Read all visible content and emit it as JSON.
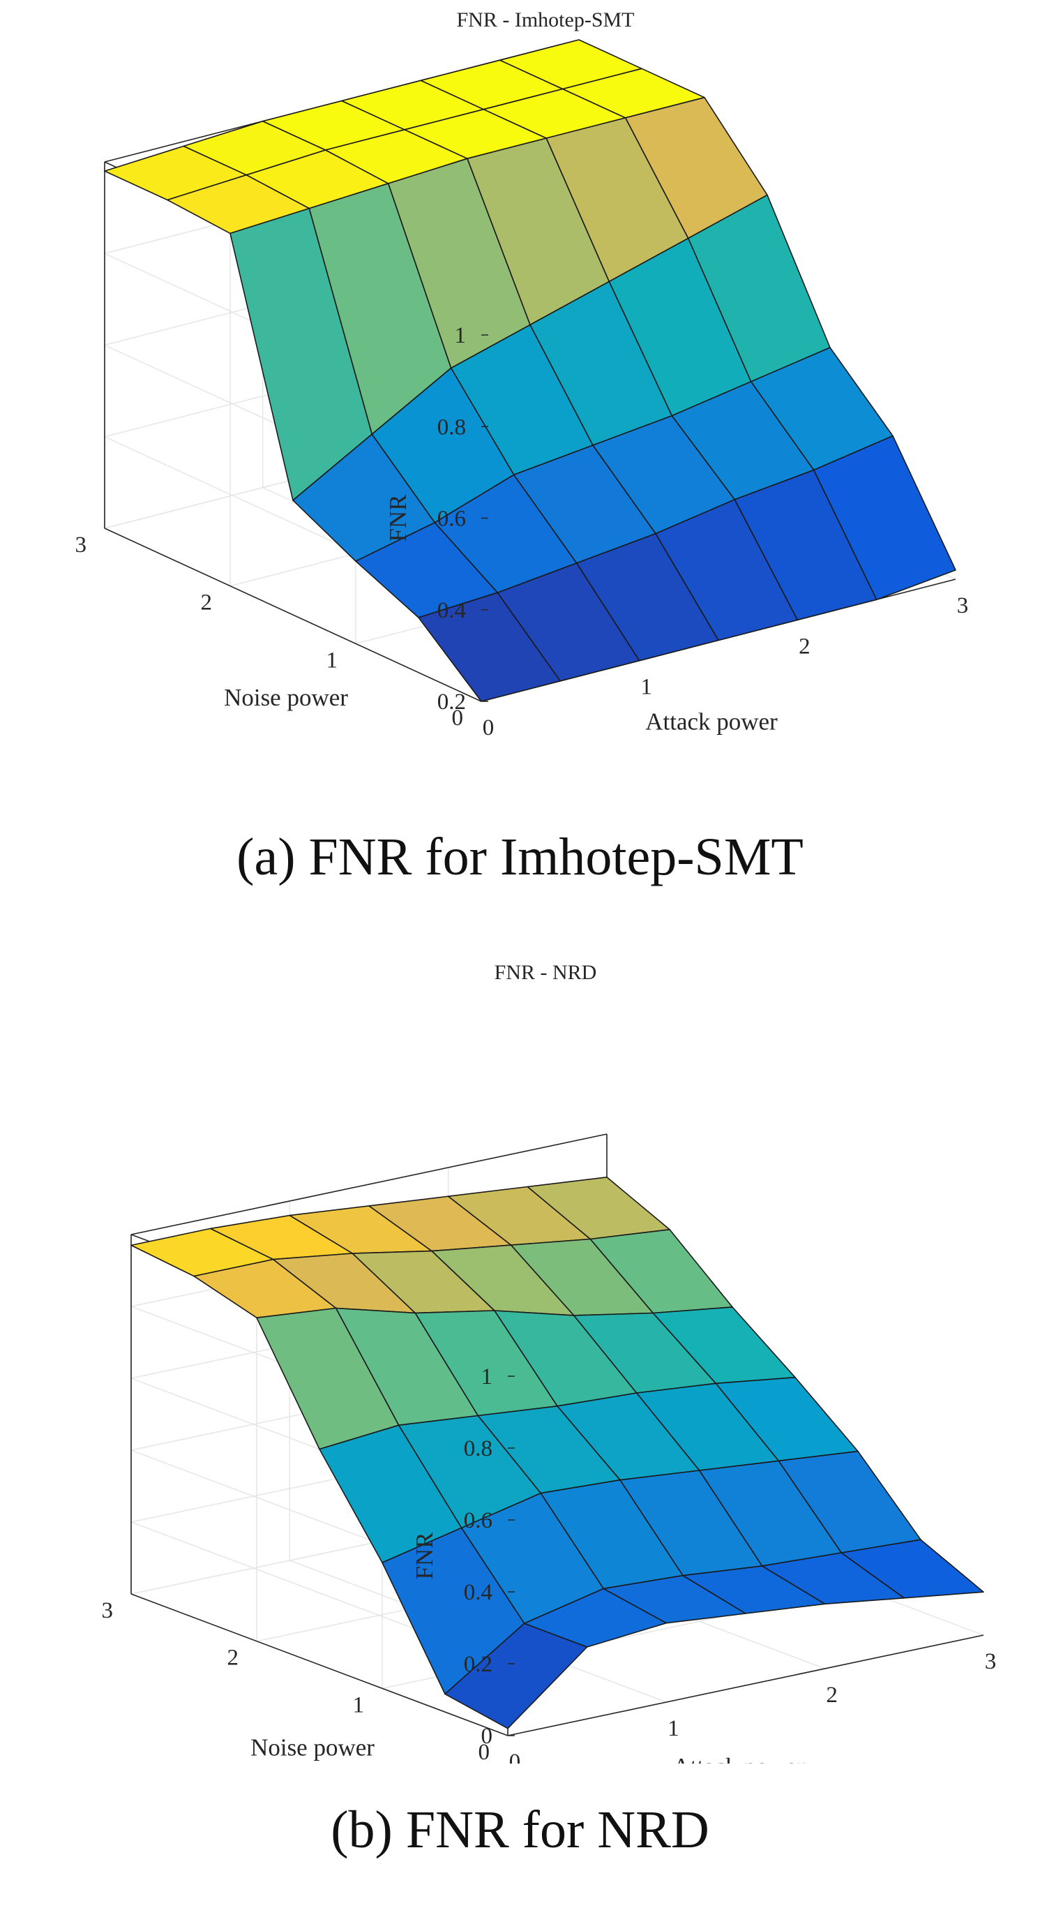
{
  "chart_data": [
    {
      "type": "surface",
      "title": "FNR - Imhotep-SMT",
      "caption": "(a) FNR for Imhotep-SMT",
      "xlabel": "Attack power",
      "ylabel": "Noise power",
      "zlabel": "FNR",
      "xlim": [
        0,
        3
      ],
      "ylim": [
        0,
        3
      ],
      "zlim": [
        0.2,
        1
      ],
      "xticks": [
        "0",
        "1",
        "2",
        "3"
      ],
      "yticks": [
        "0",
        "1",
        "2",
        "3"
      ],
      "zticks": [
        "0.2",
        "0.4",
        "0.6",
        "0.8",
        "1"
      ],
      "grid": true,
      "colormap": "parula",
      "x": [
        0,
        0.5,
        1,
        1.5,
        2,
        2.5,
        3
      ],
      "y": [
        0,
        0.5,
        1,
        1.5,
        2,
        2.5,
        3
      ],
      "z": [
        [
          0.2,
          0.2,
          0.2,
          0.2,
          0.2,
          0.2,
          0.22
        ],
        [
          0.32,
          0.33,
          0.35,
          0.37,
          0.4,
          0.42,
          0.45
        ],
        [
          0.38,
          0.42,
          0.48,
          0.5,
          0.52,
          0.55,
          0.58
        ],
        [
          0.45,
          0.55,
          0.65,
          0.7,
          0.75,
          0.8,
          0.85
        ],
        [
          0.97,
          0.98,
          0.99,
          1.0,
          1.0,
          1.0,
          1.0
        ],
        [
          0.98,
          0.99,
          1.0,
          1.0,
          1.0,
          1.0,
          1.0
        ],
        [
          0.98,
          0.99,
          1.0,
          1.0,
          1.0,
          1.0,
          1.0
        ]
      ]
    },
    {
      "type": "surface",
      "title": "FNR - NRD",
      "caption": "(b) FNR for NRD",
      "xlabel": "Attack power",
      "ylabel": "Noise power",
      "zlabel": "FNR",
      "xlim": [
        0,
        3
      ],
      "ylim": [
        0,
        3
      ],
      "zlim": [
        0,
        1
      ],
      "xticks": [
        "0",
        "1",
        "2",
        "3"
      ],
      "yticks": [
        "0",
        "1",
        "2",
        "3"
      ],
      "zticks": [
        "0",
        "0.2",
        "0.4",
        "0.6",
        "0.8",
        "1"
      ],
      "grid": true,
      "colormap": "parula",
      "x": [
        0,
        0.5,
        1,
        1.5,
        2,
        2.5,
        3
      ],
      "y": [
        0,
        0.5,
        1,
        1.5,
        2,
        2.5,
        3
      ],
      "z": [
        [
          0.02,
          0.2,
          0.22,
          0.2,
          0.18,
          0.15,
          0.12
        ],
        [
          0.05,
          0.2,
          0.25,
          0.24,
          0.22,
          0.21,
          0.2
        ],
        [
          0.35,
          0.4,
          0.45,
          0.44,
          0.42,
          0.4,
          0.38
        ],
        [
          0.6,
          0.62,
          0.6,
          0.58,
          0.57,
          0.55,
          0.52
        ],
        [
          0.9,
          0.88,
          0.82,
          0.78,
          0.72,
          0.68,
          0.65
        ],
        [
          0.95,
          0.95,
          0.92,
          0.88,
          0.85,
          0.82,
          0.8
        ],
        [
          0.97,
          0.97,
          0.96,
          0.94,
          0.92,
          0.9,
          0.88
        ]
      ]
    }
  ]
}
